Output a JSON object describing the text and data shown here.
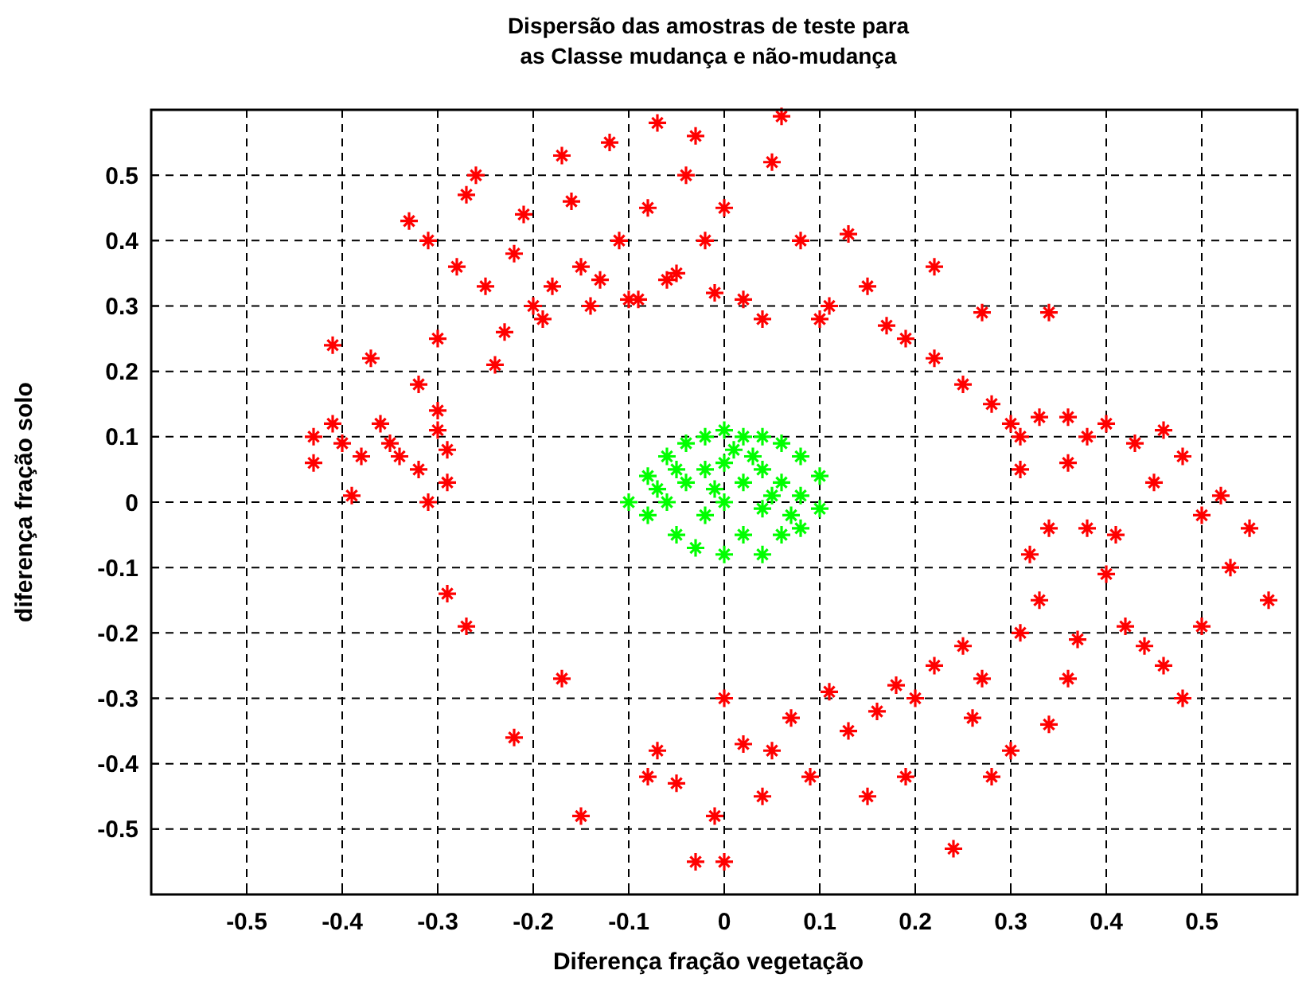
{
  "chart_data": {
    "type": "scatter",
    "title": "Dispersão das amostras de teste para\nas Classe mudança e não-mudança",
    "xlabel": "Diferença fração vegetação",
    "ylabel": "diferença fração solo",
    "xlim": [
      -0.6,
      0.6
    ],
    "ylim": [
      -0.6,
      0.6
    ],
    "xticks": [
      -0.5,
      -0.4,
      -0.3,
      -0.2,
      -0.1,
      0,
      0.1,
      0.2,
      0.3,
      0.4,
      0.5
    ],
    "yticks": [
      -0.5,
      -0.4,
      -0.3,
      -0.2,
      -0.1,
      0,
      0.1,
      0.2,
      0.3,
      0.4,
      0.5
    ],
    "grid": true,
    "marker": "cross",
    "series": [
      {
        "color": "#ff0000",
        "x": [
          -0.43,
          -0.43,
          -0.41,
          -0.41,
          -0.4,
          -0.39,
          -0.38,
          -0.37,
          -0.36,
          -0.35,
          -0.34,
          -0.33,
          -0.32,
          -0.32,
          -0.31,
          -0.31,
          -0.3,
          -0.3,
          -0.3,
          -0.29,
          -0.29,
          -0.29,
          -0.27,
          -0.28,
          -0.27,
          -0.26,
          -0.25,
          -0.24,
          -0.23,
          -0.22,
          -0.21,
          -0.2,
          -0.19,
          -0.18,
          -0.17,
          -0.16,
          -0.15,
          -0.14,
          -0.13,
          -0.12,
          -0.11,
          -0.1,
          -0.09,
          -0.08,
          -0.07,
          -0.06,
          -0.05,
          -0.04,
          -0.03,
          -0.02,
          -0.01,
          0,
          0.02,
          0.04,
          0.05,
          0.06,
          0.08,
          0.1,
          0.11,
          0.13,
          0.15,
          0.17,
          0.19,
          0.22,
          0.22,
          0.25,
          0.27,
          0.28,
          0.3,
          0.31,
          0.33,
          0.34,
          0.36,
          0.38,
          0.4,
          0.43,
          0.46,
          0.48,
          0.5,
          0.52,
          0.55,
          0.57,
          0.53,
          0.5,
          0.48,
          0.46,
          0.44,
          0.42,
          0.4,
          0.38,
          0.37,
          0.36,
          0.34,
          0.33,
          0.32,
          0.31,
          0.3,
          0.28,
          0.27,
          0.26,
          0.25,
          0.24,
          0.22,
          0.2,
          0.19,
          0.18,
          0.16,
          0.15,
          0.13,
          0.11,
          0.09,
          0.07,
          0.05,
          0.04,
          0.02,
          0,
          -0.01,
          0,
          -0.03,
          -0.05,
          -0.07,
          -0.08,
          -0.15,
          -0.17,
          -0.22,
          0.34,
          0.31,
          0.36,
          0.41,
          0.45
        ],
        "values": [
          0.1,
          0.06,
          0.24,
          0.12,
          0.09,
          0.01,
          0.07,
          0.22,
          0.12,
          0.09,
          0.07,
          0.43,
          0.18,
          0.05,
          0,
          0.4,
          0.25,
          0.14,
          0.11,
          0.08,
          0.03,
          -0.14,
          -0.19,
          0.36,
          0.47,
          0.5,
          0.33,
          0.21,
          0.26,
          0.38,
          0.44,
          0.3,
          0.28,
          0.33,
          0.53,
          0.46,
          0.36,
          0.3,
          0.34,
          0.55,
          0.4,
          0.31,
          0.31,
          0.45,
          0.58,
          0.34,
          0.35,
          0.5,
          0.56,
          0.4,
          0.32,
          0.45,
          0.31,
          0.28,
          0.52,
          0.59,
          0.4,
          0.28,
          0.3,
          0.41,
          0.33,
          0.27,
          0.25,
          0.36,
          0.22,
          0.18,
          0.29,
          0.15,
          0.12,
          0.1,
          0.13,
          0.29,
          0.06,
          0.1,
          0.12,
          0.09,
          0.11,
          0.07,
          -0.02,
          0.01,
          -0.04,
          -0.15,
          -0.1,
          -0.19,
          -0.3,
          -0.25,
          -0.22,
          -0.19,
          -0.11,
          -0.04,
          -0.21,
          -0.27,
          -0.34,
          -0.15,
          -0.08,
          -0.2,
          -0.38,
          -0.42,
          -0.27,
          -0.33,
          -0.22,
          -0.53,
          -0.25,
          -0.3,
          -0.42,
          -0.28,
          -0.32,
          -0.45,
          -0.35,
          -0.29,
          -0.42,
          -0.33,
          -0.38,
          -0.45,
          -0.37,
          -0.3,
          -0.48,
          -0.55,
          -0.55,
          -0.43,
          -0.38,
          -0.42,
          -0.48,
          -0.27,
          -0.36,
          -0.04,
          0.05,
          0.13,
          -0.05,
          0.03
        ]
      },
      {
        "color": "#00ff00",
        "x": [
          -0.1,
          -0.08,
          -0.08,
          -0.06,
          -0.06,
          -0.05,
          -0.04,
          -0.04,
          -0.03,
          -0.02,
          -0.02,
          -0.02,
          0,
          0,
          0,
          0,
          0.02,
          0.02,
          0.02,
          0.04,
          0.04,
          0.04,
          0.04,
          0.06,
          0.06,
          0.06,
          0.08,
          0.08,
          0.08,
          0.1,
          0.1,
          -0.07,
          0.01,
          -0.01,
          0.03,
          0.05,
          0.07,
          -0.05
        ],
        "values": [
          0,
          0.04,
          -0.02,
          0.07,
          0,
          -0.05,
          0.09,
          0.03,
          -0.07,
          0.1,
          0.05,
          -0.02,
          0.11,
          0.06,
          0,
          -0.08,
          0.1,
          0.03,
          -0.05,
          0.1,
          0.05,
          -0.01,
          -0.08,
          0.09,
          0.03,
          -0.05,
          0.07,
          0.01,
          -0.04,
          0.04,
          -0.01,
          0.02,
          0.08,
          0.02,
          0.07,
          0.01,
          -0.02,
          0.05
        ]
      }
    ]
  }
}
